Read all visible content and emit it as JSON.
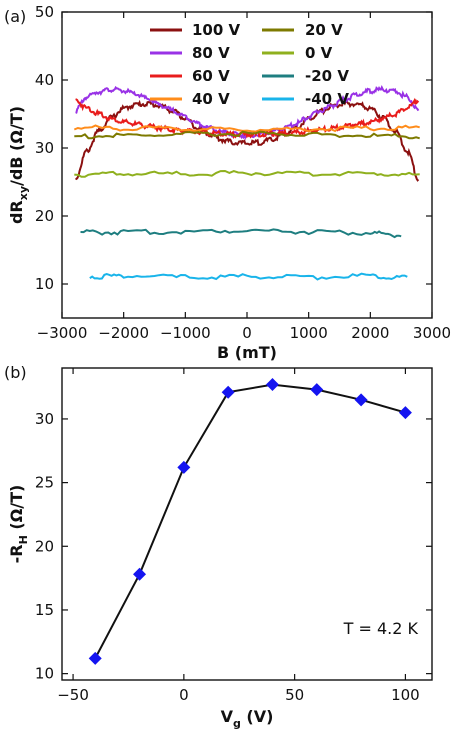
{
  "panels": {
    "a": {
      "label": "(a)"
    },
    "b": {
      "label": "(b)"
    }
  },
  "chart_data": [
    {
      "type": "line",
      "panel": "(a)",
      "xlabel": "B (mT)",
      "ylabel": "dR_xy/dB (Ω/T)",
      "ylabel_main": "dR",
      "ylabel_sub": "xy",
      "ylabel_rest": "/dB (Ω/T)",
      "xlim": [
        -3000,
        3000
      ],
      "ylim": [
        5,
        50
      ],
      "xticks": [
        -3000,
        -2000,
        -1000,
        0,
        1000,
        2000,
        3000
      ],
      "xtick_labels": [
        "−3000",
        "−2000",
        "−1000",
        "0",
        "1000",
        "2000",
        "3000"
      ],
      "yticks": [
        10,
        20,
        30,
        40,
        50
      ],
      "ytick_labels": [
        "10",
        "20",
        "30",
        "40",
        "50"
      ],
      "legend_position": "top",
      "series": [
        {
          "name": "100 V",
          "color": "#8b1010",
          "x": [
            -2780,
            -2600,
            -2400,
            -2200,
            -2000,
            -1800,
            -1600,
            -1400,
            -1200,
            -1000,
            -800,
            -600,
            -400,
            -200,
            0,
            200,
            400,
            600,
            800,
            1000,
            1200,
            1400,
            1600,
            1800,
            2000,
            2200,
            2400,
            2600,
            2780
          ],
          "y": [
            25.5,
            29.5,
            32.5,
            34.5,
            35.8,
            36.4,
            36.5,
            36.2,
            35.4,
            34.3,
            33.0,
            32.0,
            31.2,
            30.8,
            30.7,
            30.8,
            31.2,
            32.0,
            33.0,
            34.3,
            35.4,
            36.2,
            36.5,
            36.4,
            35.8,
            34.5,
            32.5,
            29.5,
            25.5
          ]
        },
        {
          "name": "80 V",
          "color": "#9932e6",
          "x": [
            -2780,
            -2600,
            -2400,
            -2200,
            -2000,
            -1800,
            -1600,
            -1400,
            -1200,
            -1000,
            -800,
            -600,
            -400,
            -200,
            0,
            200,
            400,
            600,
            800,
            1000,
            1200,
            1400,
            1600,
            1800,
            2000,
            2200,
            2400,
            2600,
            2780
          ],
          "y": [
            35.5,
            37.5,
            38.3,
            38.6,
            38.4,
            37.9,
            37.2,
            36.3,
            35.5,
            34.6,
            33.6,
            32.9,
            32.3,
            32.0,
            31.9,
            32.0,
            32.3,
            32.9,
            33.6,
            34.6,
            35.5,
            36.3,
            37.2,
            37.9,
            38.4,
            38.6,
            38.3,
            37.5,
            35.5
          ]
        },
        {
          "name": "60 V",
          "color": "#e81c1c",
          "x": [
            -2780,
            -2600,
            -2400,
            -2200,
            -2000,
            -1800,
            -1600,
            -1400,
            -1200,
            -1000,
            -800,
            -600,
            -400,
            -200,
            0,
            200,
            400,
            600,
            800,
            1000,
            1200,
            1400,
            1600,
            1800,
            2000,
            2200,
            2400,
            2600,
            2780
          ],
          "y": [
            37.0,
            35.9,
            35.0,
            34.3,
            33.8,
            33.5,
            33.2,
            32.9,
            32.7,
            32.5,
            32.3,
            32.2,
            32.1,
            32.0,
            32.0,
            32.0,
            32.1,
            32.2,
            32.3,
            32.5,
            32.7,
            32.9,
            33.2,
            33.5,
            33.8,
            34.3,
            35.0,
            35.9,
            37.0
          ]
        },
        {
          "name": "40 V",
          "color": "#ff8c1a",
          "x": [
            -2800,
            -2000,
            -1000,
            0,
            1000,
            2000,
            2800
          ],
          "y": [
            33.0,
            32.9,
            32.8,
            32.7,
            32.8,
            32.9,
            33.0
          ]
        },
        {
          "name": "20 V",
          "color": "#7d7a00",
          "x": [
            -2800,
            -2000,
            -1000,
            0,
            1000,
            2000,
            2800
          ],
          "y": [
            31.7,
            31.8,
            32.0,
            32.1,
            32.0,
            31.8,
            31.7
          ]
        },
        {
          "name": "0 V",
          "color": "#8fb01e",
          "x": [
            -2800,
            -2000,
            -1000,
            0,
            1000,
            2000,
            2800
          ],
          "y": [
            26.1,
            26.2,
            26.2,
            26.3,
            26.2,
            26.2,
            26.1
          ]
        },
        {
          "name": "-20 V",
          "color": "#1e7e80",
          "x": [
            -2700,
            -2000,
            -1000,
            0,
            1000,
            2000,
            2500
          ],
          "y": [
            17.6,
            17.6,
            17.7,
            17.9,
            17.7,
            17.5,
            17.2
          ]
        },
        {
          "name": "-40 V",
          "color": "#19b4ea",
          "x": [
            -2550,
            -2000,
            -1000,
            0,
            1000,
            2000,
            2600
          ],
          "y": [
            11.1,
            11.2,
            11.0,
            11.1,
            11.0,
            11.2,
            11.0
          ]
        }
      ]
    },
    {
      "type": "line",
      "panel": "(b)",
      "xlabel": "V_g (V)",
      "xlabel_main": "V",
      "xlabel_sub": "g",
      "xlabel_rest": " (V)",
      "ylabel": "-R_H (Ω/T)",
      "ylabel_main": "-R",
      "ylabel_sub": "H",
      "ylabel_rest": " (Ω/T)",
      "xlim": [
        -55,
        112
      ],
      "ylim": [
        9.5,
        34
      ],
      "xticks": [
        -50,
        0,
        50,
        100
      ],
      "xtick_labels": [
        "−50",
        "0",
        "50",
        "100"
      ],
      "yticks": [
        10,
        15,
        20,
        25,
        30
      ],
      "ytick_labels": [
        "10",
        "15",
        "20",
        "25",
        "30"
      ],
      "annotation": "T = 4.2 K",
      "series": [
        {
          "marker_color": "#1414f0",
          "line_color": "#111111",
          "x": [
            -40,
            -20,
            0,
            20,
            40,
            60,
            80,
            100
          ],
          "y": [
            11.2,
            17.8,
            26.2,
            32.1,
            32.7,
            32.3,
            31.5,
            30.5
          ]
        }
      ]
    }
  ]
}
